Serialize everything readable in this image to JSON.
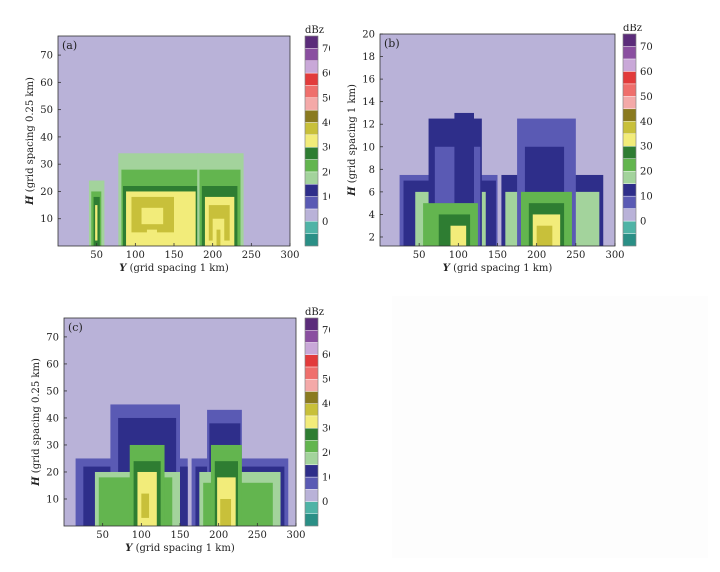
{
  "figure": {
    "unit_label": "dBz",
    "colors": {
      "background_field": "#b9b2d8",
      "plot_border": "#333333"
    }
  },
  "colorbar": {
    "levels": [
      {
        "low": -10,
        "high": -5,
        "color": "#2a8f86"
      },
      {
        "low": -5,
        "high": 0,
        "color": "#4fb3a6"
      },
      {
        "low": 0,
        "high": 5,
        "color": "#b9b2d8"
      },
      {
        "low": 5,
        "high": 10,
        "color": "#5a5ab4"
      },
      {
        "low": 10,
        "high": 15,
        "color": "#2e2e8a"
      },
      {
        "low": 15,
        "high": 20,
        "color": "#a3d39c"
      },
      {
        "low": 20,
        "high": 25,
        "color": "#63b54f"
      },
      {
        "low": 25,
        "high": 30,
        "color": "#2e7d32"
      },
      {
        "low": 30,
        "high": 35,
        "color": "#f2ec7a"
      },
      {
        "low": 35,
        "high": 40,
        "color": "#c8c03a"
      },
      {
        "low": 40,
        "high": 45,
        "color": "#8a7a20"
      },
      {
        "low": 45,
        "high": 50,
        "color": "#f4a9a8"
      },
      {
        "low": 50,
        "high": 55,
        "color": "#ef6f6c"
      },
      {
        "low": 55,
        "high": 60,
        "color": "#e23b3b"
      },
      {
        "low": 60,
        "high": 65,
        "color": "#c9a8d8"
      },
      {
        "low": 65,
        "high": 70,
        "color": "#8a4fa0"
      },
      {
        "low": 70,
        "high": 75,
        "color": "#5b2c7a"
      }
    ],
    "tick_labels": [
      "0",
      "10",
      "20",
      "30",
      "40",
      "50",
      "60",
      "70"
    ]
  },
  "chart_data": [
    {
      "panel_label": "(a)",
      "type": "heatmap",
      "title": "",
      "xlabel_var": "Y",
      "xlabel_rest": " (grid spacing 1 km)",
      "ylabel_var": "H",
      "ylabel_rest": " (grid spacing 0.25 km)",
      "xlim": [
        0,
        300
      ],
      "ylim": [
        0,
        77
      ],
      "xticks": [
        "50",
        "100",
        "150",
        "200",
        "250",
        "300"
      ],
      "yticks": [
        "10",
        "20",
        "30",
        "40",
        "50",
        "60",
        "70"
      ],
      "cells": [
        [
          40,
          60,
          0,
          24,
          17
        ],
        [
          43,
          56,
          0,
          20,
          22
        ],
        [
          46,
          54,
          0,
          18,
          27
        ],
        [
          48,
          51,
          2,
          15,
          33
        ],
        [
          78,
          190,
          0,
          34,
          17
        ],
        [
          82,
          188,
          0,
          28,
          22
        ],
        [
          84,
          182,
          0,
          22,
          27
        ],
        [
          88,
          178,
          0,
          20,
          33
        ],
        [
          95,
          150,
          5,
          18,
          37
        ],
        [
          108,
          136,
          8,
          14,
          32
        ],
        [
          115,
          128,
          0,
          6,
          32
        ],
        [
          180,
          240,
          0,
          34,
          17
        ],
        [
          183,
          236,
          0,
          28,
          22
        ],
        [
          186,
          232,
          0,
          22,
          27
        ],
        [
          190,
          228,
          0,
          18,
          33
        ],
        [
          195,
          222,
          2,
          15,
          37
        ],
        [
          200,
          215,
          0,
          10,
          32
        ],
        [
          205,
          210,
          0,
          6,
          36
        ]
      ]
    },
    {
      "panel_label": "(b)",
      "type": "heatmap",
      "title": "",
      "xlabel_var": "Y",
      "xlabel_rest": " (grid spacing 1 km)",
      "ylabel_var": "H",
      "ylabel_rest": " (grid spacing 1 km)",
      "xlim": [
        0,
        300
      ],
      "ylim": [
        1.2,
        20
      ],
      "xticks": [
        "50",
        "100",
        "150",
        "200",
        "250",
        "300"
      ],
      "yticks": [
        "2",
        "4",
        "6",
        "8",
        "10",
        "12",
        "14",
        "16",
        "18",
        "20"
      ],
      "cells": [
        [
          25,
          150,
          1.2,
          7.5,
          7
        ],
        [
          30,
          148,
          1.2,
          7,
          12
        ],
        [
          45,
          135,
          1.2,
          6,
          17
        ],
        [
          62,
          130,
          1.2,
          12.5,
          12
        ],
        [
          70,
          128,
          1.2,
          10,
          7
        ],
        [
          95,
          120,
          5,
          13,
          12
        ],
        [
          55,
          125,
          1.2,
          5,
          22
        ],
        [
          75,
          115,
          1.2,
          4,
          27
        ],
        [
          90,
          110,
          1.2,
          3,
          33
        ],
        [
          155,
          285,
          1.2,
          7.5,
          12
        ],
        [
          160,
          280,
          1.2,
          6,
          17
        ],
        [
          175,
          250,
          1.2,
          12.5,
          7
        ],
        [
          185,
          235,
          1.2,
          10,
          12
        ],
        [
          180,
          245,
          1.2,
          6,
          22
        ],
        [
          190,
          235,
          1.2,
          5,
          27
        ],
        [
          195,
          230,
          1.2,
          4,
          33
        ],
        [
          200,
          220,
          1.2,
          3,
          37
        ]
      ]
    },
    {
      "panel_label": "(c)",
      "type": "heatmap",
      "title": "",
      "xlabel_var": "Y",
      "xlabel_rest": " (grid spacing 1 km)",
      "ylabel_var": "H",
      "ylabel_rest": " (grid spacing 0.25 km)",
      "xlim": [
        0,
        300
      ],
      "ylim": [
        0,
        77
      ],
      "xticks": [
        "50",
        "100",
        "150",
        "200",
        "250",
        "300"
      ],
      "yticks": [
        "10",
        "20",
        "30",
        "40",
        "50",
        "60",
        "70"
      ],
      "cells": [
        [
          15,
          160,
          0,
          25,
          7
        ],
        [
          25,
          160,
          0,
          22,
          12
        ],
        [
          60,
          150,
          0,
          45,
          7
        ],
        [
          70,
          145,
          0,
          40,
          12
        ],
        [
          40,
          150,
          0,
          20,
          17
        ],
        [
          45,
          140,
          0,
          18,
          22
        ],
        [
          85,
          130,
          0,
          30,
          22
        ],
        [
          90,
          125,
          0,
          24,
          27
        ],
        [
          95,
          120,
          0,
          20,
          33
        ],
        [
          100,
          110,
          3,
          12,
          37
        ],
        [
          165,
          290,
          0,
          25,
          7
        ],
        [
          170,
          285,
          0,
          22,
          12
        ],
        [
          185,
          230,
          0,
          43,
          7
        ],
        [
          188,
          228,
          0,
          38,
          12
        ],
        [
          175,
          280,
          0,
          20,
          17
        ],
        [
          180,
          270,
          0,
          16,
          22
        ],
        [
          190,
          230,
          0,
          30,
          22
        ],
        [
          195,
          225,
          0,
          24,
          27
        ],
        [
          198,
          222,
          0,
          18,
          33
        ],
        [
          202,
          216,
          0,
          10,
          37
        ]
      ]
    }
  ]
}
